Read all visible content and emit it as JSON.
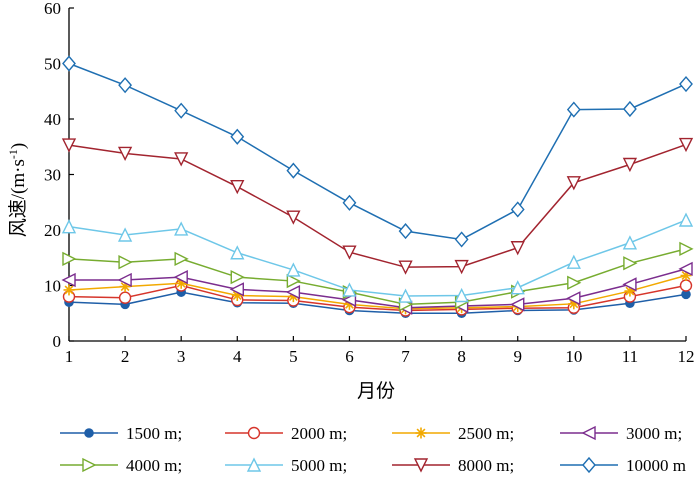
{
  "chart_data": {
    "type": "line",
    "xlabel": "月份",
    "ylabel": "风速/(m·s",
    "ylabel_sup": "-1",
    "ylabel_close": ")",
    "x": [
      1,
      2,
      3,
      4,
      5,
      6,
      7,
      8,
      9,
      10,
      11,
      12
    ],
    "x_ticks": [
      "1",
      "2",
      "3",
      "4",
      "5",
      "6",
      "7",
      "8",
      "9",
      "10",
      "11",
      "12"
    ],
    "xlim": [
      1,
      12
    ],
    "ylim": [
      0,
      60
    ],
    "y_ticks": [
      "0",
      "10",
      "20",
      "30",
      "40",
      "50",
      "60"
    ],
    "grid": false,
    "legend_position": "bottom",
    "series": [
      {
        "name": "1500 m;",
        "color": "#1f5fa8",
        "marker": "filled-circle",
        "values": [
          7.0,
          6.6,
          8.8,
          6.9,
          6.8,
          5.5,
          5.0,
          5.0,
          5.5,
          5.6,
          6.8,
          8.4
        ]
      },
      {
        "name": "2000 m;",
        "color": "#d6352b",
        "marker": "open-circle",
        "values": [
          8.0,
          7.8,
          10.0,
          7.4,
          7.3,
          6.1,
          5.5,
          5.7,
          5.9,
          6.0,
          8.0,
          10.0
        ]
      },
      {
        "name": "2500 m;",
        "color": "#f2a900",
        "marker": "asterisk",
        "values": [
          9.2,
          9.8,
          10.4,
          8.2,
          8.0,
          6.6,
          5.8,
          6.0,
          6.2,
          6.7,
          9.0,
          11.8
        ]
      },
      {
        "name": "3000 m;",
        "color": "#7b2d8e",
        "marker": "triangle-left",
        "values": [
          11.0,
          11.0,
          11.5,
          9.3,
          8.8,
          7.4,
          6.0,
          6.3,
          6.6,
          7.7,
          10.2,
          13.0
        ]
      },
      {
        "name": "4000 m;",
        "color": "#77ac30",
        "marker": "triangle-right",
        "values": [
          14.8,
          14.2,
          14.8,
          11.5,
          10.8,
          8.8,
          6.6,
          7.0,
          8.9,
          10.5,
          14.0,
          16.6
        ]
      },
      {
        "name": "5000 m;",
        "color": "#6ec7e8",
        "marker": "triangle-up",
        "values": [
          20.6,
          19.1,
          20.2,
          15.9,
          12.8,
          9.2,
          8.1,
          8.2,
          9.6,
          14.2,
          17.7,
          21.8
        ]
      },
      {
        "name": "8000 m;",
        "color": "#a2242f",
        "marker": "triangle-down",
        "values": [
          35.3,
          33.8,
          32.8,
          27.8,
          22.3,
          16.0,
          13.3,
          13.4,
          16.8,
          28.5,
          31.8,
          35.4
        ]
      },
      {
        "name": "10000 m",
        "color": "#1f6fb2",
        "marker": "diamond",
        "values": [
          50.0,
          46.1,
          41.5,
          36.8,
          30.7,
          24.9,
          19.8,
          18.3,
          23.7,
          41.7,
          41.8,
          46.3
        ]
      }
    ]
  }
}
